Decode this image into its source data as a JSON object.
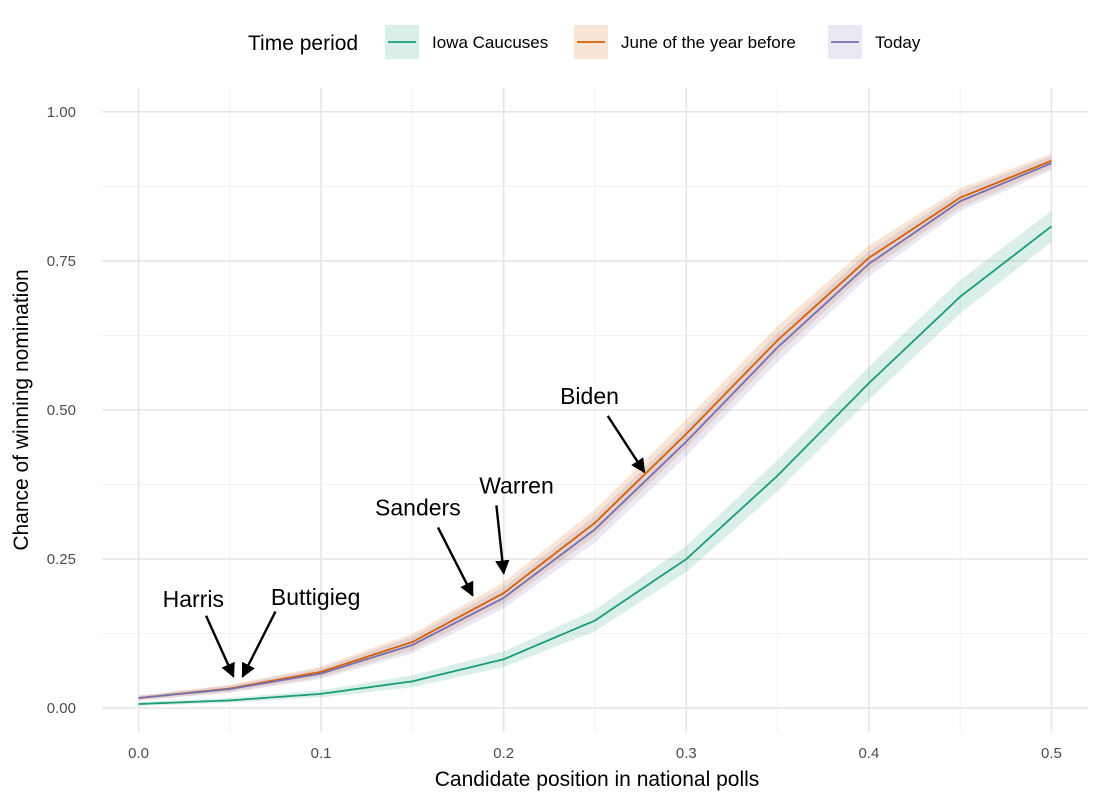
{
  "chart_data": {
    "type": "line",
    "xlabel": "Candidate position in national polls",
    "ylabel": "Chance of winning nomination",
    "xlim": [
      -0.02,
      0.52
    ],
    "ylim": [
      -0.04,
      1.04
    ],
    "x_ticks": [
      0.0,
      0.1,
      0.2,
      0.3,
      0.4,
      0.5
    ],
    "x_tick_labels": [
      "0.0",
      "0.1",
      "0.2",
      "0.3",
      "0.4",
      "0.5"
    ],
    "y_ticks": [
      0.0,
      0.25,
      0.5,
      0.75,
      1.0
    ],
    "y_tick_labels": [
      "0.00",
      "0.25",
      "0.50",
      "0.75",
      "1.00"
    ],
    "grid": true,
    "legend": {
      "title": "Time period",
      "position": "top"
    },
    "series": [
      {
        "name": "Iowa Caucuses",
        "color": "#1b9e77",
        "x": [
          0.0,
          0.05,
          0.1,
          0.15,
          0.2,
          0.25,
          0.3,
          0.35,
          0.4,
          0.45,
          0.5
        ],
        "y": [
          0.007,
          0.013,
          0.024,
          0.045,
          0.082,
          0.147,
          0.25,
          0.39,
          0.545,
          0.69,
          0.808
        ],
        "band_width": [
          0.003,
          0.004,
          0.006,
          0.01,
          0.013,
          0.018,
          0.022,
          0.026,
          0.028,
          0.028,
          0.026
        ]
      },
      {
        "name": "June of the year before",
        "color": "#d95f02",
        "x": [
          0.0,
          0.05,
          0.1,
          0.15,
          0.2,
          0.25,
          0.3,
          0.35,
          0.4,
          0.45,
          0.5
        ],
        "y": [
          0.017,
          0.033,
          0.061,
          0.111,
          0.193,
          0.311,
          0.46,
          0.617,
          0.755,
          0.856,
          0.918
        ],
        "band_width": [
          0.004,
          0.006,
          0.009,
          0.014,
          0.018,
          0.022,
          0.024,
          0.024,
          0.021,
          0.016,
          0.012
        ]
      },
      {
        "name": "Today",
        "color": "#7570b3",
        "x": [
          0.0,
          0.05,
          0.1,
          0.15,
          0.2,
          0.25,
          0.3,
          0.35,
          0.4,
          0.45,
          0.5
        ],
        "y": [
          0.017,
          0.032,
          0.058,
          0.106,
          0.185,
          0.3,
          0.447,
          0.605,
          0.745,
          0.85,
          0.914
        ],
        "band_width": [
          0.004,
          0.006,
          0.009,
          0.014,
          0.018,
          0.022,
          0.024,
          0.024,
          0.021,
          0.016,
          0.012
        ]
      }
    ],
    "annotations": [
      {
        "label": "Harris",
        "text_x": 0.03,
        "text_y": 0.17,
        "arrow_from": [
          0.037,
          0.155
        ],
        "arrow_to": [
          0.052,
          0.053
        ]
      },
      {
        "label": "Buttigieg",
        "text_x": 0.097,
        "text_y": 0.173,
        "arrow_from": [
          0.075,
          0.162
        ],
        "arrow_to": [
          0.057,
          0.053
        ]
      },
      {
        "label": "Sanders",
        "text_x": 0.153,
        "text_y": 0.323,
        "arrow_from": [
          0.164,
          0.303
        ],
        "arrow_to": [
          0.183,
          0.189
        ]
      },
      {
        "label": "Warren",
        "text_x": 0.207,
        "text_y": 0.36,
        "arrow_from": [
          0.196,
          0.34
        ],
        "arrow_to": [
          0.2,
          0.226
        ]
      },
      {
        "label": "Biden",
        "text_x": 0.247,
        "text_y": 0.51,
        "arrow_from": [
          0.257,
          0.49
        ],
        "arrow_to": [
          0.277,
          0.396
        ]
      }
    ]
  }
}
